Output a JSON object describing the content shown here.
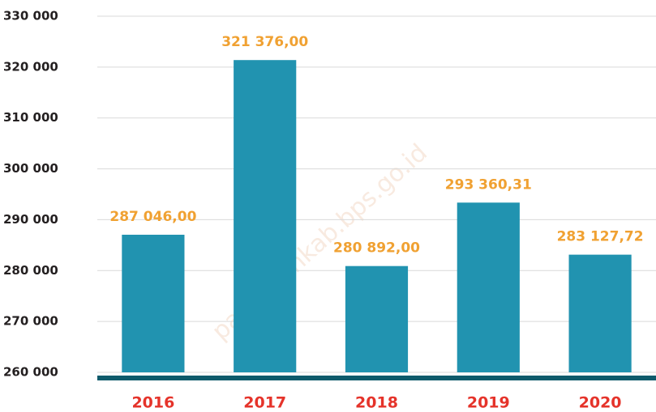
{
  "chart_data": {
    "type": "bar",
    "categories": [
      "2016",
      "2017",
      "2018",
      "2019",
      "2020"
    ],
    "values": [
      287046.0,
      321376.0,
      280892.0,
      293360.31,
      283127.72
    ],
    "value_labels": [
      "287 046,00",
      "321 376,00",
      "280 892,00",
      "293 360,31",
      "283 127,72"
    ],
    "color": "#2193b0",
    "ylim": [
      260000,
      330000
    ],
    "yticks": [
      {
        "value": 260000,
        "label": "260 000"
      },
      {
        "value": 270000,
        "label": "270 000"
      },
      {
        "value": 280000,
        "label": "280 000"
      },
      {
        "value": 290000,
        "label": "290 000"
      },
      {
        "value": 300000,
        "label": "300 000"
      },
      {
        "value": 310000,
        "label": "310 000"
      },
      {
        "value": 320000,
        "label": "320 000"
      },
      {
        "value": 330000,
        "label": "330 000"
      }
    ],
    "grid": true,
    "watermark": "pariamankab.bps.go.id"
  }
}
